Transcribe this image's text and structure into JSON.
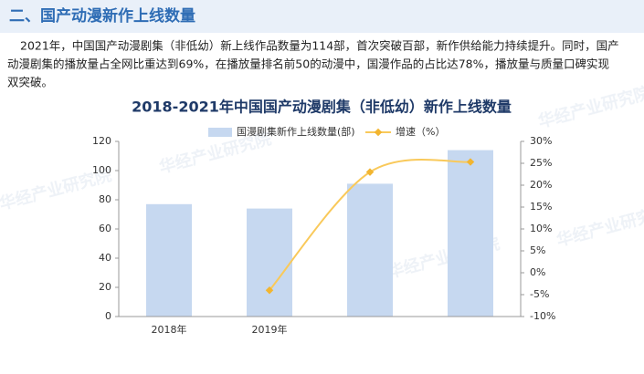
{
  "header": {
    "title": "二、国产动漫新作上线数量"
  },
  "paragraph": {
    "lines": [
      "2021年，中国国产动漫剧集（非低幼）新上线作品数量为114部，首次突破百部，新作供给能力持续提升。同时，国产",
      "动漫剧集的播放量占全网比重达到69%，在播放量排名前50的动漫中，国漫作品的占比达78%，播放量与质量口碑实现",
      "双突破。"
    ]
  },
  "watermark": "华经产业研究院",
  "chart_data": {
    "type": "bar",
    "title": "2018-2021年中国国产动漫剧集（非低幼）新作上线数量",
    "categories": [
      "2018年",
      "2019年",
      null,
      null
    ],
    "series": [
      {
        "name": "国漫剧集新作上线数量(部)",
        "color": "#c6d8f0",
        "values": [
          77,
          74,
          91,
          114
        ]
      },
      {
        "name": "增速（%）",
        "color": "#f9c95a",
        "type": "line",
        "axis": "y2",
        "values": [
          null,
          -4,
          23,
          25.3
        ]
      }
    ],
    "ylim": [
      0,
      120
    ],
    "yticks": [
      0,
      20,
      40,
      60,
      80,
      100,
      120
    ],
    "y2lim": [
      -10,
      30
    ],
    "y2ticks": [
      {
        "value": -10,
        "label": "-10%"
      },
      {
        "value": -5,
        "label": "-5%"
      },
      {
        "value": 0,
        "label": "0%"
      },
      {
        "value": 5,
        "label": "5%"
      },
      {
        "value": 10,
        "label": "10%"
      },
      {
        "value": 15,
        "label": "15%"
      },
      {
        "value": 20,
        "label": "20%"
      },
      {
        "value": 25,
        "label": "25%"
      },
      {
        "value": 30,
        "label": "30%"
      }
    ],
    "legend": "top"
  }
}
